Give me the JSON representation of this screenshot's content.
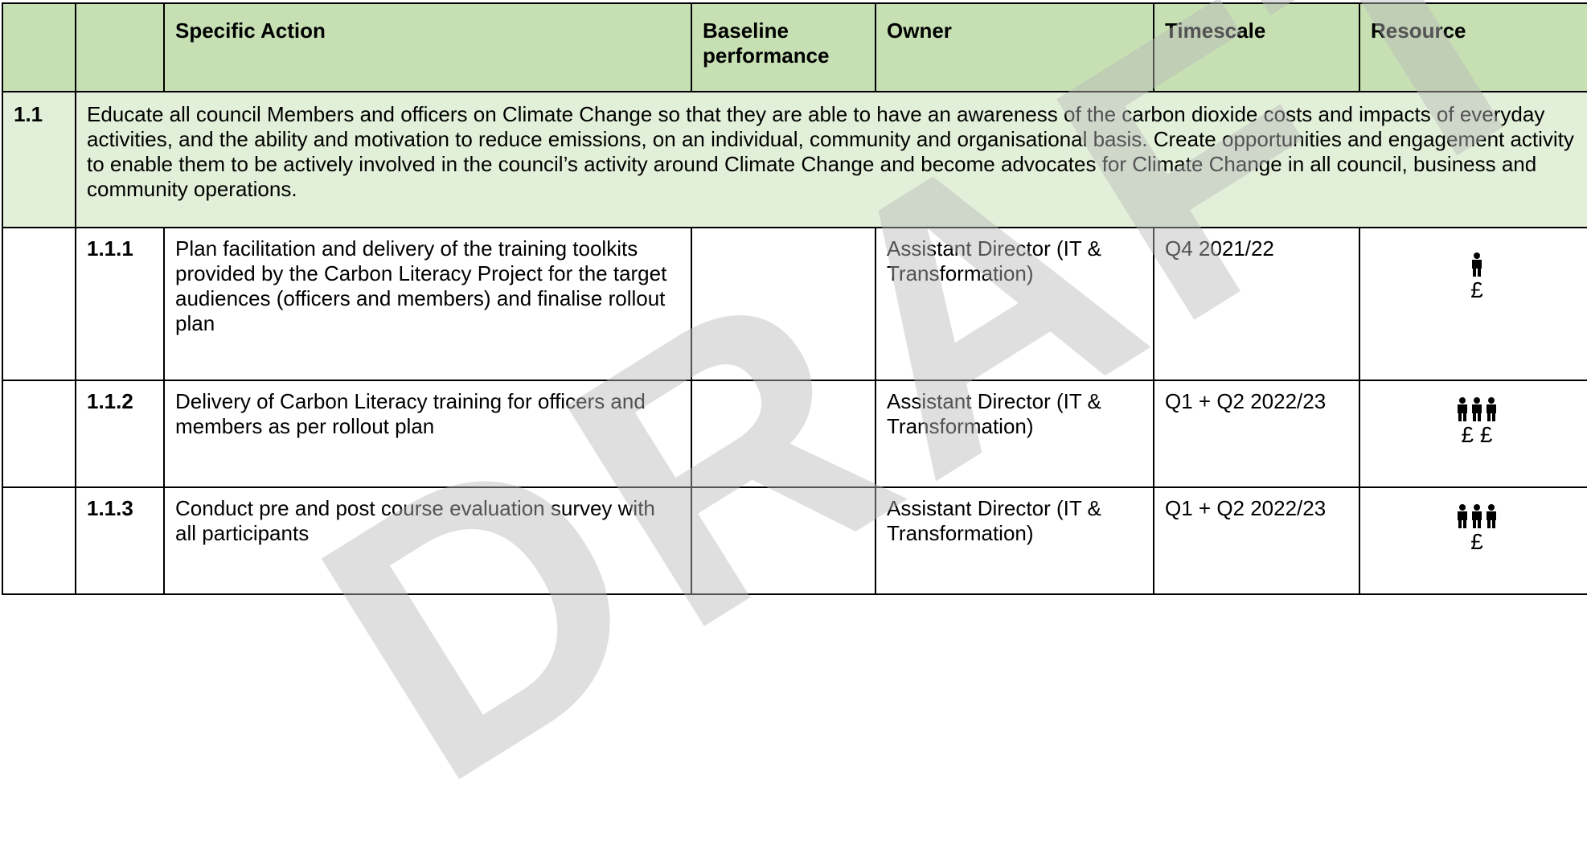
{
  "header": {
    "columns": [
      "Specific Action",
      "Baseline performance",
      "Owner",
      "Timescale",
      "Resource"
    ]
  },
  "section": {
    "number": "1.1",
    "text": "Educate all council Members and officers on Climate Change so that they are able to have an awareness of the carbon dioxide costs and impacts of everyday activities, and the ability and motivation to reduce emissions, on an individual, community and organisational basis. Create opportunities and engagement activity to enable them to be actively involved in the council’s activity around Climate Change and become advocates for Climate Change in all council, business and community operations."
  },
  "rows": [
    {
      "number": "1.1.1",
      "action": "Plan facilitation and delivery of the training toolkits provided by the Carbon Literacy Project for the target audiences (officers and members) and finalise rollout plan",
      "owner": "Assistant Director (IT & Transformation)",
      "timescale": "Q4 2021/22",
      "cost": "£"
    },
    {
      "number": "1.1.2",
      "action": "Delivery of Carbon Literacy training for officers and members as per rollout plan",
      "owner": "Assistant Director (IT & Transformation)",
      "timescale": "Q1 + Q2 2022/23",
      "cost": "£ £"
    },
    {
      "number": "1.1.3",
      "action": "Conduct pre and post course evaluation survey with all participants",
      "owner": "Assistant Director (IT & Transformation)",
      "timescale": "Q1 + Q2 2022/23",
      "cost": "£"
    }
  ],
  "watermark": "DRAFT"
}
